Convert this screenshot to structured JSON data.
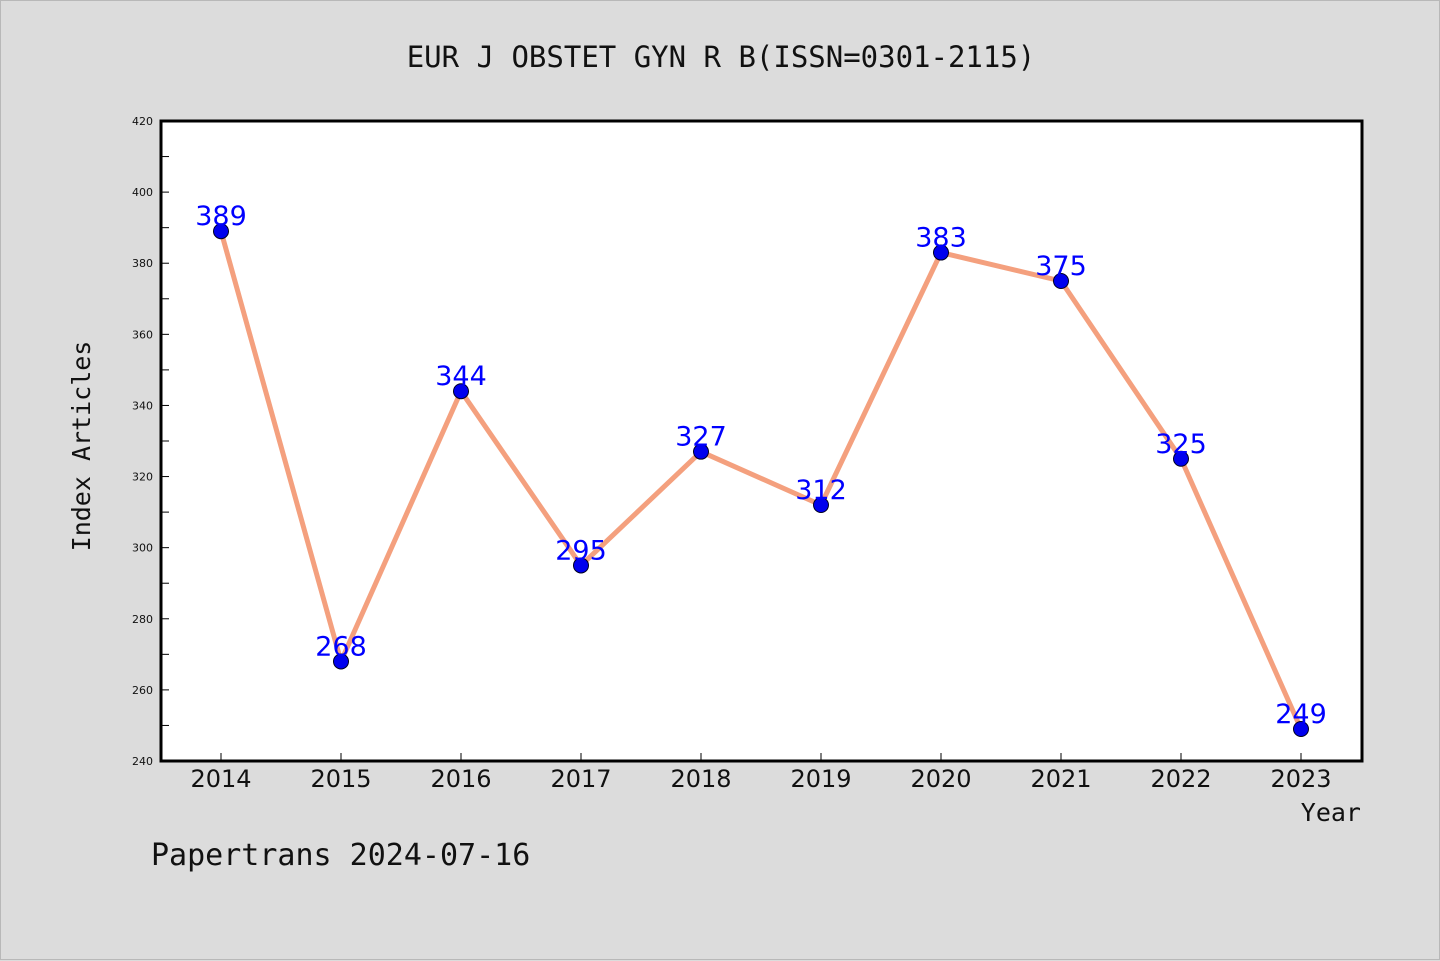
{
  "chart_data": {
    "type": "line",
    "title": "EUR J OBSTET GYN R B(ISSN=0301-2115)",
    "xlabel": "Year",
    "ylabel": "Index Articles",
    "categories": [
      "2014",
      "2015",
      "2016",
      "2017",
      "2018",
      "2019",
      "2020",
      "2021",
      "2022",
      "2023"
    ],
    "series": [
      {
        "values": [
          389,
          268,
          344,
          295,
          327,
          312,
          383,
          375,
          325,
          249
        ]
      }
    ],
    "ylim": [
      240,
      420
    ],
    "yticks": [
      240,
      260,
      280,
      300,
      320,
      340,
      360,
      380,
      400,
      420
    ],
    "grid": false,
    "data_labels": true,
    "colors": {
      "line": "#f4a07e",
      "marker": "#0000ee",
      "data_label": "#0000ff",
      "plot_bg": "#ffffff",
      "page_bg": "#dcdcdc"
    }
  },
  "footer": {
    "credit": "Papertrans 2024-07-16"
  }
}
